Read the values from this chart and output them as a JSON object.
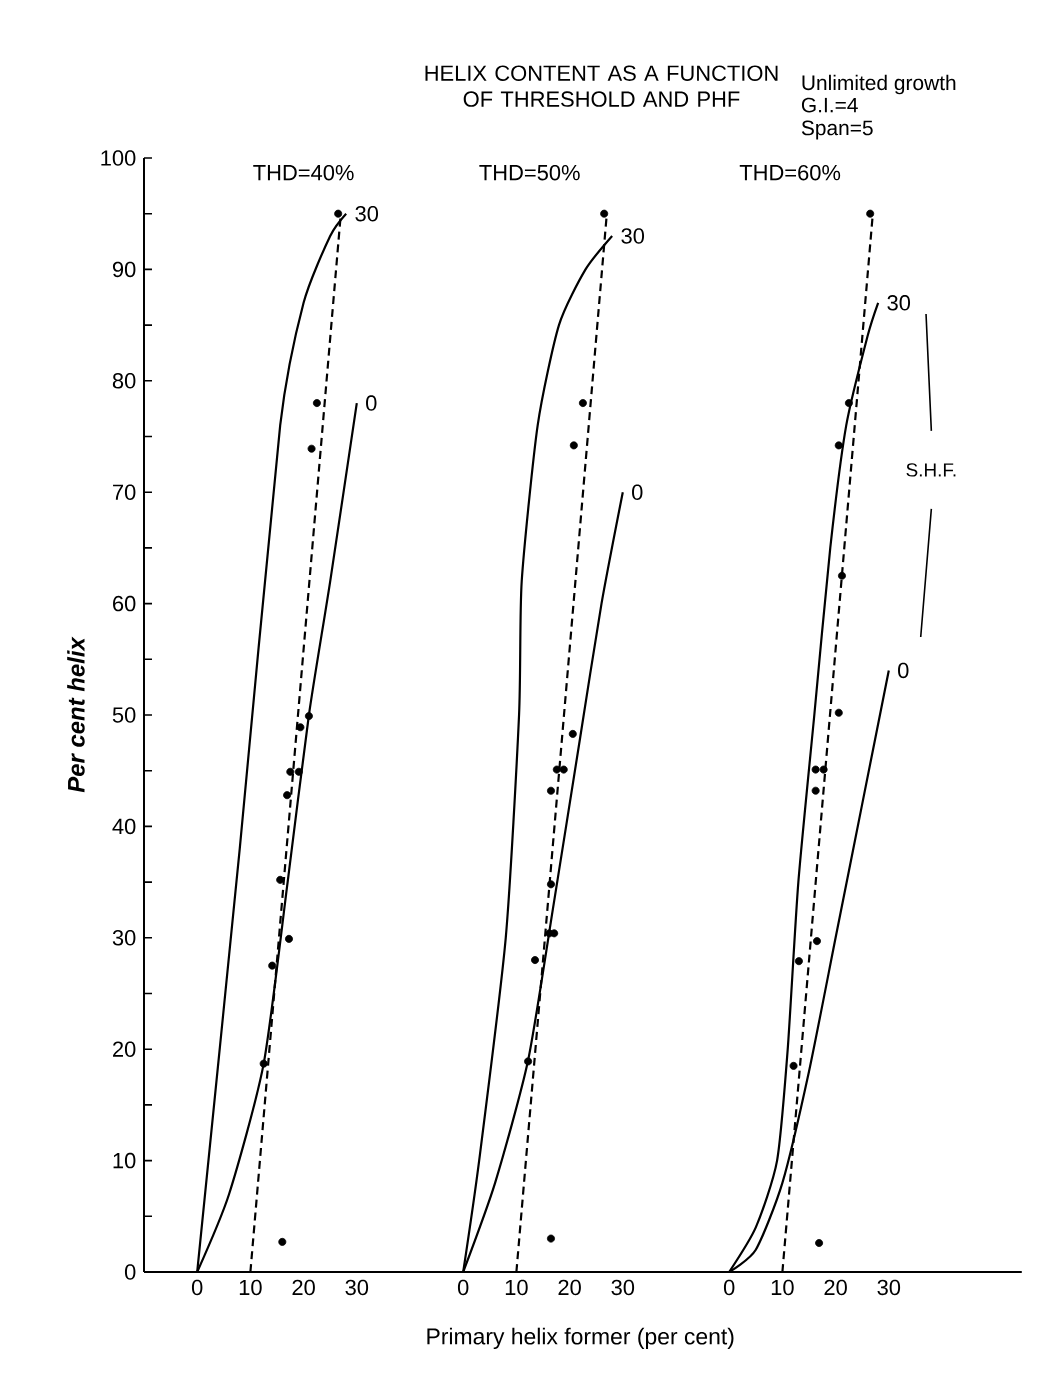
{
  "chart_data": [
    {
      "type": "line",
      "title": "THD=40%",
      "ylabel": "Per cent helix",
      "annotations": [
        "HELIX CONTENT AS A FUNCTION OF THRESHOLD AND PHF"
      ],
      "xlim": [
        -10,
        40
      ],
      "xticks": [
        0,
        10,
        20,
        30
      ],
      "ylim": [
        0,
        100
      ],
      "yticks": [
        0,
        {
          "value": 5,
          "label": null
        },
        10,
        {
          "value": 15,
          "label": null
        },
        20,
        {
          "value": 25,
          "label": null
        },
        30,
        {
          "value": 35,
          "label": null
        },
        40,
        {
          "value": 45,
          "label": null
        },
        50,
        {
          "value": 55,
          "label": null
        },
        60,
        {
          "value": 65,
          "label": null
        },
        70,
        {
          "value": 75,
          "label": null
        },
        80,
        {
          "value": 85,
          "label": null
        },
        90,
        {
          "value": 95,
          "label": null
        },
        100
      ],
      "line_style": "solid",
      "series": [
        {
          "name": "30",
          "color": "#000000",
          "x": [
            0,
            8,
            15.6,
            20,
            25,
            28
          ],
          "values": [
            0,
            38,
            76,
            87,
            93,
            95
          ]
        },
        {
          "name": "0",
          "color": "#000000",
          "x": [
            0,
            6,
            12.5,
            17,
            21,
            25,
            30
          ],
          "values": [
            0,
            7,
            18.7,
            35,
            50,
            62,
            78
          ]
        },
        {
          "type": "line",
          "line_style": "dashed",
          "color": "#000000",
          "x": [
            10,
            27
          ],
          "values": [
            0,
            95
          ]
        },
        {
          "type": "scatter",
          "marker": "circle",
          "color": "#000000",
          "x": [
            26.5,
            22.5,
            21.5,
            21,
            19.4,
            17.5,
            19.1,
            16.9,
            15.6,
            17.25,
            14.1,
            12.5,
            16
          ],
          "values": [
            95,
            78,
            73.9,
            49.9,
            48.9,
            44.9,
            44.9,
            42.8,
            35.2,
            29.9,
            27.5,
            18.7,
            2.7
          ]
        }
      ]
    },
    {
      "type": "line",
      "title": "THD=50%",
      "xlabel": "Primary helix former (per cent)",
      "tick_labels": "x",
      "xlim": [
        -10,
        40
      ],
      "xticks": [
        0,
        10,
        20,
        30
      ],
      "ylim": [
        0,
        100
      ],
      "line_style": "solid",
      "series": [
        {
          "name": "30",
          "color": "#000000",
          "x": [
            0,
            3,
            8,
            10.5,
            11,
            14,
            18,
            23,
            28
          ],
          "values": [
            0,
            10,
            30,
            50,
            62,
            76,
            85,
            90,
            93
          ]
        },
        {
          "name": "0",
          "color": "#000000",
          "x": [
            0,
            6,
            12.2,
            17,
            22,
            26,
            30
          ],
          "values": [
            0,
            8,
            19,
            33,
            48,
            60,
            70
          ]
        },
        {
          "type": "line",
          "line_style": "dashed",
          "color": "#000000",
          "x": [
            10,
            27
          ],
          "values": [
            0,
            95
          ]
        },
        {
          "type": "scatter",
          "marker": "circle",
          "color": "#000000",
          "x": [
            26.5,
            22.5,
            20.8,
            20.6,
            17.6,
            18.9,
            16.5,
            16.5,
            16.2,
            17.1,
            13.5,
            12.2,
            16.5
          ],
          "values": [
            95,
            78,
            74.2,
            48.3,
            45.1,
            45.1,
            43.2,
            34.8,
            30.4,
            30.4,
            28,
            18.9,
            3
          ]
        }
      ]
    },
    {
      "type": "line",
      "title": "THD=60%",
      "annotations": [
        "Unlimited growth",
        "G.I.=4",
        "Span=5",
        "S.H.F."
      ],
      "tick_labels": "x",
      "xlim": [
        -10,
        55
      ],
      "xticks": [
        0,
        10,
        20,
        30
      ],
      "ylim": [
        0,
        100
      ],
      "line_style": "solid",
      "series": [
        {
          "name": "30",
          "color": "#000000",
          "x": [
            0,
            5,
            9,
            11,
            13,
            16,
            19,
            22,
            26,
            28
          ],
          "values": [
            0,
            4,
            10,
            20,
            35,
            50,
            65,
            76,
            84,
            87
          ]
        },
        {
          "name": "0",
          "color": "#000000",
          "x": [
            0,
            5,
            10,
            15,
            20,
            25,
            30
          ],
          "values": [
            0,
            2,
            8,
            18,
            30,
            42,
            54
          ]
        },
        {
          "type": "line",
          "line_style": "dashed",
          "color": "#000000",
          "x": [
            10,
            27
          ],
          "values": [
            0,
            95
          ]
        },
        {
          "type": "scatter",
          "marker": "circle",
          "color": "#000000",
          "x": [
            26.5,
            22.5,
            20.6,
            21.2,
            20.6,
            16.25,
            17.75,
            16.25,
            16.5,
            13.1,
            12.1,
            16.9
          ],
          "values": [
            95,
            78,
            74.2,
            62.5,
            50.2,
            45.1,
            45.1,
            43.2,
            29.7,
            27.9,
            18.5,
            2.6
          ]
        }
      ]
    }
  ]
}
